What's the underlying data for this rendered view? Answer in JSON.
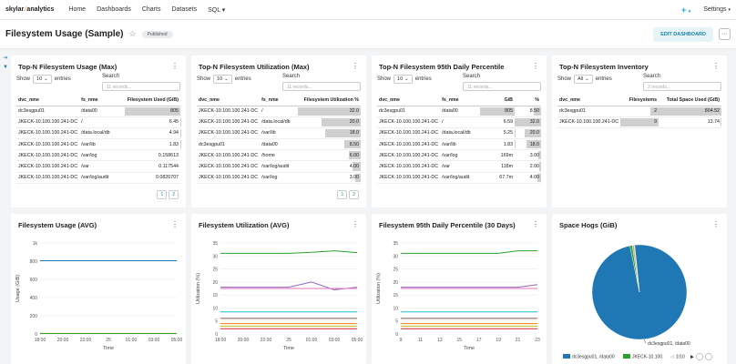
{
  "nav": {
    "brand_a": "skylar",
    "brand_b": "analytics",
    "items": [
      "Home",
      "Dashboards",
      "Charts",
      "Datasets",
      "SQL"
    ],
    "sql_caret": "▾",
    "plus": "+",
    "settings": "Settings"
  },
  "header": {
    "title": "Filesystem Usage (Sample)",
    "badge": "Published",
    "edit": "EDIT DASHBOARD",
    "more": "···"
  },
  "cards": {
    "t1": {
      "title": "Top-N Filesystem Usage (Max)",
      "show": "Show",
      "entries_value": "10",
      "entries": "entries",
      "search_label": "Search",
      "search_placeholder": "11 records...",
      "columns": [
        "dvc_nme",
        "fs_nme",
        "Filesystem Used (GiB)"
      ],
      "rows": [
        [
          "dc3esgpu01",
          "/data00",
          "805"
        ],
        [
          "JKECK-10.100.100.241-DC",
          "/",
          "6.45"
        ],
        [
          "JKECK-10.100.100.241-DC",
          "/data.local/db",
          "4.94"
        ],
        [
          "JKECK-10.100.100.241-DC",
          "/var/lib",
          "1.83"
        ],
        [
          "JKECK-10.100.100.241-DC",
          "/var/log",
          "0.158613"
        ],
        [
          "JKECK-10.100.100.241-DC",
          "/var",
          "0.117544"
        ],
        [
          "JKECK-10.100.100.241-DC",
          "/var/log/audit",
          "0.0826707"
        ]
      ],
      "bar_values": [
        805,
        6.45,
        4.94,
        1.83,
        0.158613,
        0.117544,
        0.0826707
      ],
      "pages": [
        "1",
        "2"
      ]
    },
    "t2": {
      "title": "Top-N Filesystem Utilization (Max)",
      "show": "Show",
      "entries_value": "10",
      "entries": "entries",
      "search_label": "Search",
      "search_placeholder": "11 records...",
      "columns": [
        "dvc_nme",
        "fs_nme",
        "Filesystem Utilization %"
      ],
      "rows": [
        [
          "JKECK-10.100.100.241-DC",
          "/",
          "32.0"
        ],
        [
          "JKECK-10.100.100.241-DC",
          "/data.local/db",
          "20.0"
        ],
        [
          "JKECK-10.100.100.241-DC",
          "/var/lib",
          "18.0"
        ],
        [
          "dc3esgpu01",
          "/data00",
          "8.50"
        ],
        [
          "JKECK-10.100.100.241-DC",
          "/home",
          "6.00"
        ],
        [
          "JKECK-10.100.100.241-DC",
          "/var/log/audit",
          "4.00"
        ],
        [
          "JKECK-10.100.100.241-DC",
          "/var/log",
          "3.00"
        ]
      ],
      "bar_values": [
        32,
        20,
        18,
        8.5,
        6,
        4,
        3
      ],
      "pages": [
        "1",
        "2"
      ]
    },
    "t3": {
      "title": "Top-N Filesystem 95th Daily Percentile",
      "show": "Show",
      "entries_value": "10",
      "entries": "entries",
      "search_label": "Search",
      "search_placeholder": "11 records...",
      "columns": [
        "dvc_nme",
        "fs_nme",
        "GiB",
        "%"
      ],
      "rows": [
        [
          "dc3esgpu01",
          "/data00",
          "805",
          "8.50"
        ],
        [
          "JKECK-10.100.100.241-DC",
          "/",
          "6.59",
          "32.0"
        ],
        [
          "JKECK-10.100.100.241-DC",
          "/data.local/db",
          "5.25",
          "20.0"
        ],
        [
          "JKECK-10.100.100.241-DC",
          "/var/lib",
          "1.83",
          "18.0"
        ],
        [
          "JKECK-10.100.100.241-DC",
          "/var/log",
          "169m",
          "3.00"
        ],
        [
          "JKECK-10.100.100.241-DC",
          "/var",
          "118m",
          "2.00"
        ],
        [
          "JKECK-10.100.100.241-DC",
          "/var/log/audit",
          "67.7m",
          "4.00"
        ]
      ],
      "gib_values": [
        805,
        6.59,
        5.25,
        1.83,
        0.169,
        0.118,
        0.0677
      ],
      "pct_values": [
        8.5,
        32,
        20,
        18,
        3,
        2,
        4
      ]
    },
    "t4": {
      "title": "Top-N Filesystem Inventory",
      "show": "Show",
      "entries_value": "All",
      "entries": "entries",
      "search_label": "Search",
      "search_placeholder": "2 records...",
      "columns": [
        "dvc_nme",
        "Filesystems",
        "Total Space Used (GiB)"
      ],
      "rows": [
        [
          "dc3esgpu01",
          "2",
          "804.52"
        ],
        [
          "JKECK-10.100.100.241-DC",
          "9",
          "13.74"
        ]
      ],
      "fs_values": [
        2,
        9
      ],
      "space_values": [
        804.52,
        13.74
      ]
    },
    "c1": {
      "title": "Filesystem Usage (AVG)",
      "ylabel": "Usage (GiB)",
      "xlabel": "Time",
      "yticks": [
        "0",
        "200",
        "400",
        "600",
        "800",
        "1k"
      ],
      "xticks": [
        "18:00",
        "20:00",
        "22:00",
        "25",
        "01:00",
        "03:00",
        "05:00"
      ]
    },
    "c2": {
      "title": "Filesystem Utilization (AVG)",
      "ylabel": "Utilization (%)",
      "xlabel": "Time",
      "yticks": [
        "0",
        "5",
        "10",
        "15",
        "20",
        "25",
        "30",
        "35"
      ],
      "xticks": [
        "18:00",
        "20:00",
        "22:00",
        "25",
        "01:00",
        "03:00",
        "05:00"
      ]
    },
    "c3": {
      "title": "Filesystem 95th Daily Percentile (30 Days)",
      "ylabel": "Utilization (%)",
      "xlabel": "Time",
      "yticks": [
        "0",
        "5",
        "10",
        "15",
        "20",
        "25",
        "30",
        "35"
      ],
      "xticks": [
        "9",
        "11",
        "13",
        "15",
        "17",
        "19",
        "21",
        "23"
      ]
    },
    "c4": {
      "title": "Space Hogs (GiB)",
      "slice_label": "dc3esgpu01, /data00",
      "legend": [
        "dc3esgpu01, /data00",
        "JKECK-10.100."
      ],
      "page": "1/10"
    }
  },
  "chart_data": [
    {
      "type": "line",
      "title": "Filesystem Usage (AVG)",
      "xlabel": "Time",
      "ylabel": "Usage (GiB)",
      "ylim": [
        0,
        1000
      ],
      "x": [
        "18:00",
        "20:00",
        "22:00",
        "25",
        "01:00",
        "03:00",
        "05:00"
      ],
      "series": [
        {
          "color": "#1f77b4",
          "values": [
            805,
            805,
            805,
            805,
            805,
            805,
            805
          ]
        },
        {
          "color": "#ff7f0e",
          "values": [
            6,
            6,
            6,
            6,
            6,
            6,
            6
          ]
        },
        {
          "color": "#2ca02c",
          "values": [
            5,
            5,
            5,
            5,
            5,
            5,
            5
          ]
        }
      ]
    },
    {
      "type": "line",
      "title": "Filesystem Utilization (AVG)",
      "xlabel": "Time",
      "ylabel": "Utilization (%)",
      "ylim": [
        0,
        35
      ],
      "x": [
        "18:00",
        "20:00",
        "22:00",
        "25",
        "01:00",
        "03:00",
        "05:00"
      ],
      "series": [
        {
          "color": "#2ca02c",
          "values": [
            31,
            31,
            31,
            31,
            31.4,
            32,
            31.3
          ]
        },
        {
          "color": "#9467bd",
          "values": [
            18,
            18,
            18,
            18,
            20,
            17,
            18
          ]
        },
        {
          "color": "#e377c2",
          "values": [
            17.5,
            17.5,
            17.5,
            17.5,
            17.5,
            17.5,
            17.5
          ]
        },
        {
          "color": "#17becf",
          "values": [
            8.5,
            8.5,
            8.5,
            8.5,
            8.5,
            8.5,
            8.5
          ]
        },
        {
          "color": "#8c564b",
          "values": [
            6,
            6,
            6,
            6,
            6,
            6,
            6
          ]
        },
        {
          "color": "#ff7f0e",
          "values": [
            4,
            4,
            4,
            4,
            4,
            4,
            4
          ]
        },
        {
          "color": "#bcbd22",
          "values": [
            3,
            3,
            3,
            3,
            3,
            3,
            3
          ]
        },
        {
          "color": "#d62728",
          "values": [
            2,
            2,
            2,
            2,
            2,
            2,
            2
          ]
        }
      ]
    },
    {
      "type": "line",
      "title": "Filesystem 95th Daily Percentile (30 Days)",
      "xlabel": "Time",
      "ylabel": "Utilization (%)",
      "ylim": [
        0,
        35
      ],
      "x": [
        "9",
        "11",
        "13",
        "15",
        "17",
        "19",
        "21",
        "23"
      ],
      "series": [
        {
          "color": "#2ca02c",
          "values": [
            31,
            31,
            31,
            31,
            31,
            31,
            32,
            32
          ]
        },
        {
          "color": "#9467bd",
          "values": [
            18,
            18,
            18,
            18,
            18,
            18,
            18,
            19
          ]
        },
        {
          "color": "#e377c2",
          "values": [
            17.5,
            17.5,
            17.5,
            17.5,
            17.5,
            17.5,
            17.5,
            17.5
          ]
        },
        {
          "color": "#17becf",
          "values": [
            8.5,
            8.5,
            8.5,
            8.5,
            8.5,
            8.5,
            8.5,
            8.5
          ]
        },
        {
          "color": "#8c564b",
          "values": [
            6,
            6,
            6,
            6,
            6,
            6,
            6,
            6
          ]
        },
        {
          "color": "#ff7f0e",
          "values": [
            4,
            4,
            4,
            4,
            4,
            4,
            4,
            4
          ]
        },
        {
          "color": "#bcbd22",
          "values": [
            3,
            3,
            3,
            3,
            3,
            3,
            3,
            3
          ]
        },
        {
          "color": "#d62728",
          "values": [
            2,
            2,
            2,
            2,
            2,
            2,
            2,
            2
          ]
        }
      ]
    },
    {
      "type": "pie",
      "title": "Space Hogs (GiB)",
      "categories": [
        "dc3esgpu01, /data00",
        "JKECK-10.100.100.241-DC, /",
        "JKECK-10.100.100.241-DC, /data.local/db",
        "JKECK-10.100.100.241-DC, /var/lib"
      ],
      "values": [
        805,
        6.45,
        4.94,
        1.83
      ],
      "colors": [
        "#1f77b4",
        "#2ca02c",
        "#aaaaaa",
        "#ff7f0e"
      ]
    }
  ]
}
